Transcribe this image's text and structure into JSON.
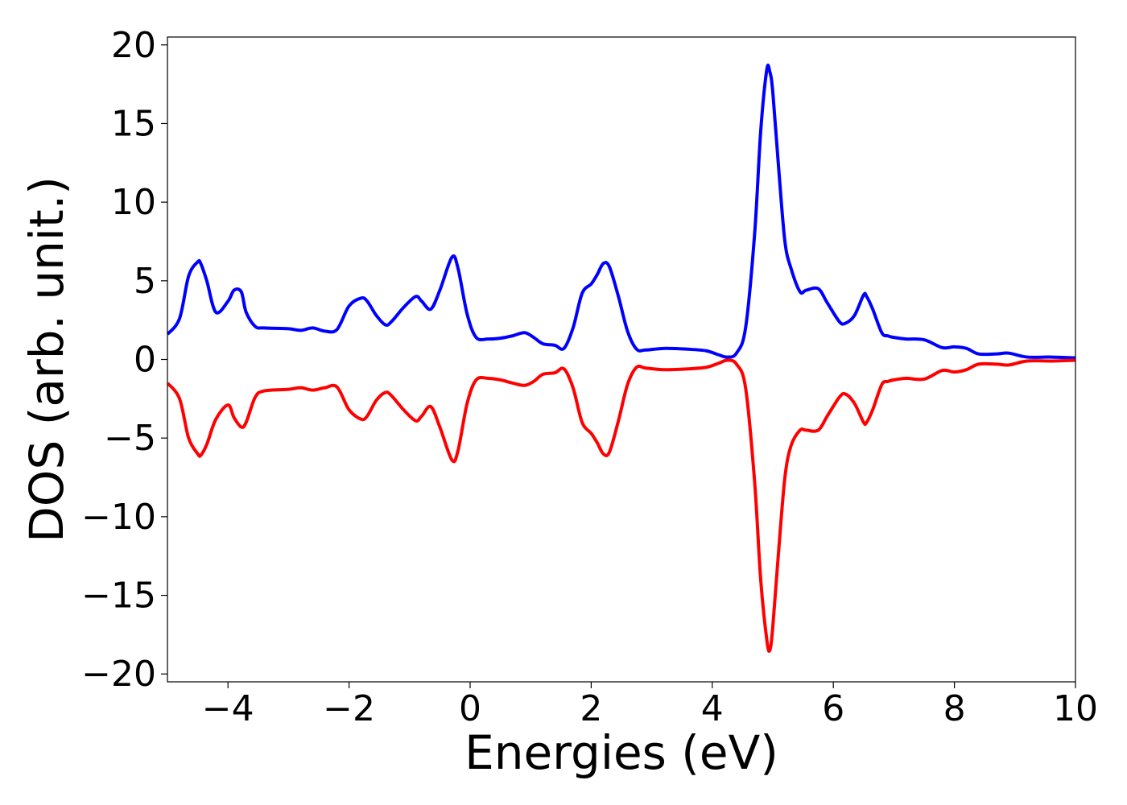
{
  "chart_data": {
    "type": "line",
    "title": "",
    "xlabel": "Energies (eV)",
    "ylabel": "DOS (arb. unit.)",
    "xlim": [
      -5,
      10
    ],
    "ylim": [
      -20.5,
      20.5
    ],
    "grid": false,
    "x_ticks": [
      -4,
      -2,
      0,
      2,
      4,
      6,
      8,
      10
    ],
    "x_tick_labels": [
      "−4",
      "−2",
      "0",
      "2",
      "4",
      "6",
      "8",
      "10"
    ],
    "y_ticks": [
      20,
      15,
      10,
      5,
      0,
      -5,
      -10,
      -15,
      -20
    ],
    "y_tick_labels": [
      "20",
      "15",
      "10",
      "5",
      "0",
      "−5",
      "−10",
      "−15",
      "−20"
    ],
    "series": [
      {
        "color": "#0000ff",
        "x": [
          -5.0,
          -4.8,
          -4.65,
          -4.5,
          -4.45,
          -4.35,
          -4.2,
          -4.0,
          -3.9,
          -3.78,
          -3.7,
          -3.55,
          -3.4,
          -3.0,
          -2.8,
          -2.6,
          -2.4,
          -2.2,
          -2.0,
          -1.8,
          -1.7,
          -1.55,
          -1.4,
          -1.3,
          -1.1,
          -0.9,
          -0.8,
          -0.65,
          -0.5,
          -0.3,
          -0.2,
          -0.05,
          0.1,
          0.3,
          0.5,
          0.7,
          0.9,
          1.05,
          1.2,
          1.4,
          1.55,
          1.7,
          1.85,
          2.0,
          2.1,
          2.2,
          2.3,
          2.45,
          2.6,
          2.75,
          2.9,
          3.2,
          3.6,
          3.9,
          4.1,
          4.25,
          4.4,
          4.55,
          4.7,
          4.8,
          4.9,
          4.95,
          5.0,
          5.1,
          5.2,
          5.3,
          5.45,
          5.55,
          5.75,
          5.9,
          6.1,
          6.2,
          6.35,
          6.5,
          6.55,
          6.65,
          6.8,
          6.9,
          7.0,
          7.2,
          7.5,
          7.8,
          8.0,
          8.2,
          8.4,
          8.7,
          8.9,
          9.2,
          9.6,
          10.0
        ],
        "y": [
          1.6,
          2.6,
          5.3,
          6.2,
          6.1,
          5.0,
          3.0,
          3.7,
          4.4,
          4.3,
          3.0,
          2.1,
          2.0,
          1.95,
          1.85,
          2.0,
          1.8,
          1.9,
          3.4,
          3.9,
          3.7,
          2.8,
          2.2,
          2.4,
          3.3,
          4.0,
          3.7,
          3.2,
          4.4,
          6.5,
          5.8,
          2.9,
          1.4,
          1.3,
          1.35,
          1.5,
          1.7,
          1.4,
          1.0,
          0.9,
          0.7,
          2.0,
          4.2,
          4.8,
          5.4,
          6.1,
          5.9,
          4.0,
          1.8,
          0.65,
          0.6,
          0.7,
          0.65,
          0.55,
          0.3,
          0.15,
          0.4,
          2.0,
          8.0,
          14.5,
          18.4,
          18.3,
          17.0,
          12.0,
          7.5,
          5.8,
          4.3,
          4.4,
          4.5,
          3.6,
          2.4,
          2.3,
          2.8,
          4.1,
          4.0,
          3.2,
          1.7,
          1.5,
          1.4,
          1.3,
          1.25,
          0.75,
          0.8,
          0.7,
          0.35,
          0.35,
          0.4,
          0.15,
          0.15,
          0.1
        ]
      },
      {
        "color": "#ff0000",
        "x": [
          -5.0,
          -4.8,
          -4.65,
          -4.5,
          -4.45,
          -4.35,
          -4.2,
          -4.0,
          -3.9,
          -3.78,
          -3.7,
          -3.55,
          -3.4,
          -3.0,
          -2.8,
          -2.6,
          -2.4,
          -2.2,
          -2.0,
          -1.8,
          -1.7,
          -1.55,
          -1.4,
          -1.3,
          -1.1,
          -0.9,
          -0.8,
          -0.65,
          -0.5,
          -0.3,
          -0.2,
          -0.05,
          0.1,
          0.3,
          0.5,
          0.7,
          0.9,
          1.05,
          1.2,
          1.4,
          1.55,
          1.7,
          1.85,
          2.0,
          2.1,
          2.2,
          2.3,
          2.45,
          2.6,
          2.75,
          2.9,
          3.2,
          3.6,
          3.9,
          4.1,
          4.25,
          4.4,
          4.55,
          4.7,
          4.8,
          4.9,
          4.95,
          5.0,
          5.1,
          5.2,
          5.3,
          5.45,
          5.55,
          5.75,
          5.9,
          6.1,
          6.2,
          6.35,
          6.5,
          6.55,
          6.65,
          6.8,
          6.9,
          7.0,
          7.2,
          7.5,
          7.8,
          8.0,
          8.2,
          8.4,
          8.7,
          8.9,
          9.2,
          9.6,
          10.0
        ],
        "y": [
          -1.5,
          -2.5,
          -5.0,
          -6.0,
          -6.1,
          -5.4,
          -3.8,
          -2.9,
          -3.7,
          -4.3,
          -4.0,
          -2.4,
          -2.0,
          -1.9,
          -1.8,
          -1.95,
          -1.8,
          -1.75,
          -3.2,
          -3.8,
          -3.6,
          -2.6,
          -2.1,
          -2.3,
          -3.2,
          -3.9,
          -3.6,
          -3.0,
          -4.3,
          -6.4,
          -5.8,
          -2.8,
          -1.3,
          -1.2,
          -1.3,
          -1.5,
          -1.65,
          -1.4,
          -0.95,
          -0.85,
          -0.6,
          -1.8,
          -4.0,
          -4.7,
          -5.3,
          -6.0,
          -5.9,
          -3.9,
          -1.6,
          -0.5,
          -0.55,
          -0.65,
          -0.6,
          -0.5,
          -0.25,
          -0.05,
          -0.3,
          -1.8,
          -7.8,
          -14.0,
          -17.8,
          -18.5,
          -17.0,
          -12.0,
          -7.5,
          -5.5,
          -4.5,
          -4.5,
          -4.5,
          -3.6,
          -2.4,
          -2.2,
          -2.8,
          -4.0,
          -4.0,
          -3.2,
          -1.6,
          -1.4,
          -1.3,
          -1.2,
          -1.25,
          -0.7,
          -0.8,
          -0.65,
          -0.3,
          -0.3,
          -0.35,
          -0.1,
          -0.1,
          -0.05
        ]
      }
    ]
  }
}
